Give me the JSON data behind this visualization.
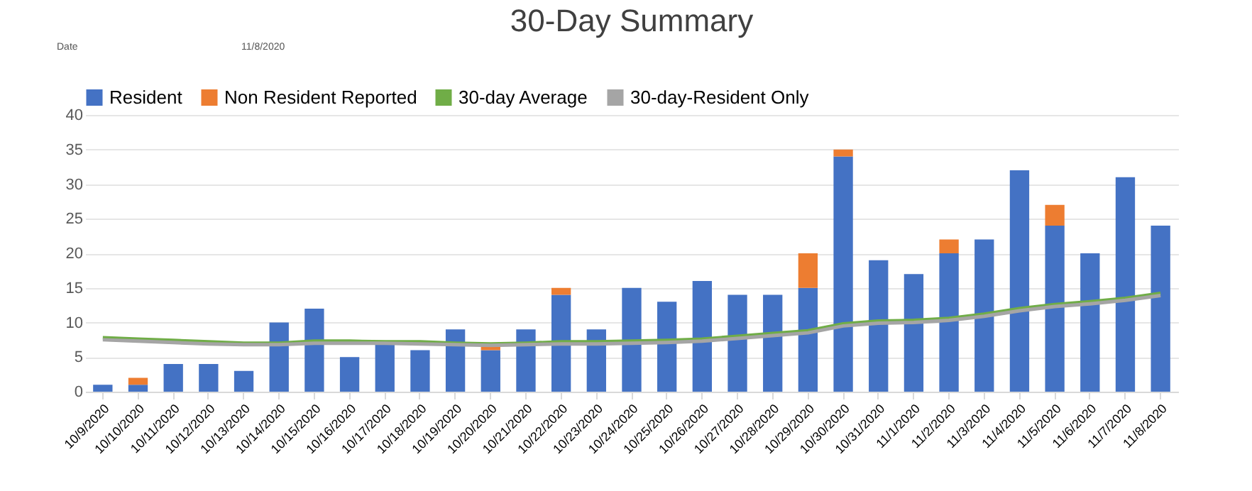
{
  "chart_data": {
    "type": "bar",
    "title": "30-Day Summary",
    "stacked": true,
    "annotations": [
      "Date",
      "11/8/2020"
    ],
    "categories": [
      "10/9/2020",
      "10/10/2020",
      "10/11/2020",
      "10/12/2020",
      "10/13/2020",
      "10/14/2020",
      "10/15/2020",
      "10/16/2020",
      "10/17/2020",
      "10/18/2020",
      "10/19/2020",
      "10/20/2020",
      "10/21/2020",
      "10/22/2020",
      "10/23/2020",
      "10/24/2020",
      "10/25/2020",
      "10/26/2020",
      "10/27/2020",
      "10/28/2020",
      "10/29/2020",
      "10/30/2020",
      "10/31/2020",
      "11/1/2020",
      "11/2/2020",
      "11/3/2020",
      "11/4/2020",
      "11/5/2020",
      "11/6/2020",
      "11/7/2020",
      "11/8/2020"
    ],
    "series": [
      {
        "name": "Resident",
        "color": "#4472c4",
        "values": [
          1,
          1,
          4,
          4,
          3,
          10,
          12,
          5,
          7,
          6,
          9,
          6,
          9,
          14,
          9,
          15,
          13,
          16,
          14,
          14,
          15,
          34,
          19,
          17,
          20,
          22,
          32,
          24,
          20,
          31,
          24
        ]
      },
      {
        "name": "Non Resident Reported",
        "color": "#ed7d31",
        "values": [
          null,
          1,
          null,
          null,
          null,
          null,
          null,
          null,
          null,
          null,
          null,
          0.5,
          null,
          1,
          null,
          null,
          null,
          null,
          null,
          null,
          5,
          1,
          null,
          null,
          2,
          null,
          null,
          3,
          null,
          null,
          null
        ]
      },
      {
        "name": "30-day Average",
        "type": "line",
        "color": "#70ad47",
        "values": [
          7.8,
          7.6,
          7.4,
          7.2,
          7.0,
          7.0,
          7.3,
          7.3,
          7.2,
          7.2,
          7.0,
          6.9,
          7.0,
          7.2,
          7.2,
          7.3,
          7.4,
          7.6,
          8.0,
          8.4,
          8.8,
          9.8,
          10.2,
          10.3,
          10.6,
          11.2,
          12.0,
          12.6,
          13.0,
          13.5,
          14.2
        ]
      },
      {
        "name": "30-day-Resident Only",
        "type": "line",
        "color": "#a5a5a5",
        "values": [
          7.5,
          7.3,
          7.1,
          6.9,
          6.8,
          6.8,
          7.0,
          7.0,
          7.0,
          6.9,
          6.8,
          6.7,
          6.8,
          6.9,
          6.9,
          7.0,
          7.1,
          7.3,
          7.7,
          8.1,
          8.5,
          9.5,
          9.9,
          10.0,
          10.3,
          10.9,
          11.7,
          12.3,
          12.7,
          13.2,
          13.9
        ]
      }
    ],
    "ylim": [
      0,
      40
    ],
    "yticks": [
      0,
      5,
      10,
      15,
      20,
      25,
      30,
      35,
      40
    ],
    "grid": "y",
    "legend": "top"
  }
}
